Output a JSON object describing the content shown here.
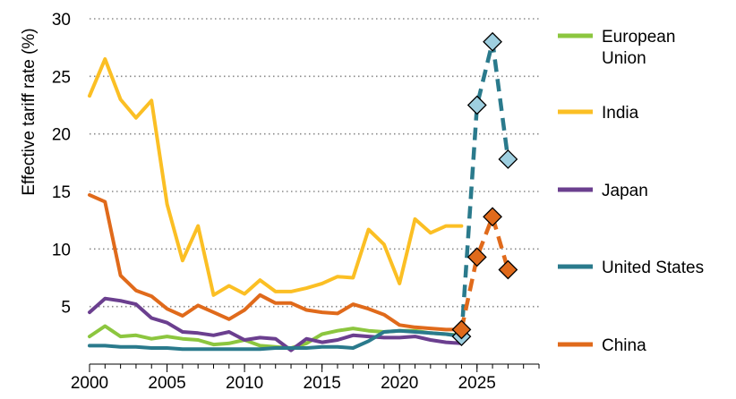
{
  "chart_data": {
    "type": "line",
    "title": "",
    "xlabel": "",
    "ylabel": "Effective tariff rate (%)",
    "xlim": [
      2000,
      2029
    ],
    "ylim": [
      0,
      30
    ],
    "x_ticks": [
      "2000",
      "2005",
      "2010",
      "2015",
      "2020",
      "2025"
    ],
    "y_ticks": [
      "5",
      "10",
      "15",
      "20",
      "25",
      "30"
    ],
    "grid": "horizontal dotted",
    "legend_placement": "right",
    "series": [
      {
        "name": "European Union",
        "color": "#8cc63f",
        "x": [
          2000,
          2001,
          2002,
          2003,
          2004,
          2005,
          2006,
          2007,
          2008,
          2009,
          2010,
          2011,
          2012,
          2013,
          2014,
          2015,
          2016,
          2017,
          2018,
          2019,
          2020,
          2021,
          2022,
          2023,
          2024
        ],
        "values": [
          2.4,
          3.3,
          2.4,
          2.5,
          2.2,
          2.4,
          2.2,
          2.1,
          1.7,
          1.8,
          2.1,
          1.6,
          1.5,
          1.4,
          1.8,
          2.6,
          2.9,
          3.1,
          2.9,
          2.8,
          2.9,
          2.9,
          2.7,
          2.6,
          2.5
        ]
      },
      {
        "name": "India",
        "color": "#fbbf24",
        "x": [
          2000,
          2001,
          2002,
          2003,
          2004,
          2005,
          2006,
          2007,
          2008,
          2009,
          2010,
          2011,
          2012,
          2013,
          2014,
          2015,
          2016,
          2017,
          2018,
          2019,
          2020,
          2021,
          2022,
          2023,
          2024
        ],
        "values": [
          23.3,
          26.5,
          23.0,
          21.4,
          22.9,
          13.9,
          9.0,
          12.0,
          6.0,
          6.8,
          6.1,
          7.3,
          6.3,
          6.3,
          6.6,
          7.0,
          7.6,
          7.5,
          11.7,
          10.4,
          7.0,
          12.6,
          11.4,
          12.0,
          12.0
        ]
      },
      {
        "name": "Japan",
        "color": "#6b3f8f",
        "x": [
          2000,
          2001,
          2002,
          2003,
          2004,
          2005,
          2006,
          2007,
          2008,
          2009,
          2010,
          2011,
          2012,
          2013,
          2014,
          2015,
          2016,
          2017,
          2018,
          2019,
          2020,
          2021,
          2022,
          2023,
          2024
        ],
        "values": [
          4.5,
          5.7,
          5.5,
          5.2,
          4.0,
          3.6,
          2.8,
          2.7,
          2.5,
          2.8,
          2.1,
          2.3,
          2.2,
          1.2,
          2.2,
          1.9,
          2.1,
          2.5,
          2.4,
          2.3,
          2.3,
          2.4,
          2.1,
          1.9,
          1.8
        ]
      },
      {
        "name": "United States",
        "color": "#2a7a8c",
        "x": [
          2000,
          2001,
          2002,
          2003,
          2004,
          2005,
          2006,
          2007,
          2008,
          2009,
          2010,
          2011,
          2012,
          2013,
          2014,
          2015,
          2016,
          2017,
          2018,
          2019,
          2020,
          2021,
          2022,
          2023,
          2024
        ],
        "values": [
          1.6,
          1.6,
          1.5,
          1.5,
          1.4,
          1.4,
          1.3,
          1.3,
          1.3,
          1.3,
          1.3,
          1.3,
          1.4,
          1.4,
          1.4,
          1.5,
          1.5,
          1.4,
          2.0,
          2.8,
          2.9,
          2.8,
          2.7,
          2.6,
          2.4
        ]
      },
      {
        "name": "China",
        "color": "#e06a1b",
        "x": [
          2000,
          2001,
          2002,
          2003,
          2004,
          2005,
          2006,
          2007,
          2008,
          2009,
          2010,
          2011,
          2012,
          2013,
          2014,
          2015,
          2016,
          2017,
          2018,
          2019,
          2020,
          2021,
          2022,
          2023,
          2024
        ],
        "values": [
          14.7,
          14.1,
          7.7,
          6.4,
          5.9,
          4.8,
          4.2,
          5.1,
          4.5,
          3.9,
          4.7,
          6.0,
          5.3,
          5.3,
          4.7,
          4.5,
          4.4,
          5.2,
          4.8,
          4.3,
          3.4,
          3.2,
          3.1,
          3.0,
          3.0
        ]
      }
    ],
    "projections": [
      {
        "name": "United States",
        "color": "#2a7a8c",
        "marker_color": "#9ecfe0",
        "x": [
          2024,
          2025,
          2026,
          2027
        ],
        "values": [
          2.4,
          22.5,
          28.0,
          17.8
        ]
      },
      {
        "name": "China",
        "color": "#e06a1b",
        "marker_color": "#e06a1b",
        "x": [
          2024,
          2025,
          2026,
          2027
        ],
        "values": [
          3.0,
          9.3,
          12.8,
          8.2
        ]
      }
    ],
    "legend": [
      {
        "label_lines": [
          "European",
          "Union"
        ],
        "color": "#8cc63f"
      },
      {
        "label_lines": [
          "India"
        ],
        "color": "#fbbf24"
      },
      {
        "label_lines": [
          "Japan"
        ],
        "color": "#6b3f8f"
      },
      {
        "label_lines": [
          "United States"
        ],
        "color": "#2a7a8c"
      },
      {
        "label_lines": [
          "China"
        ],
        "color": "#e06a1b"
      }
    ]
  }
}
